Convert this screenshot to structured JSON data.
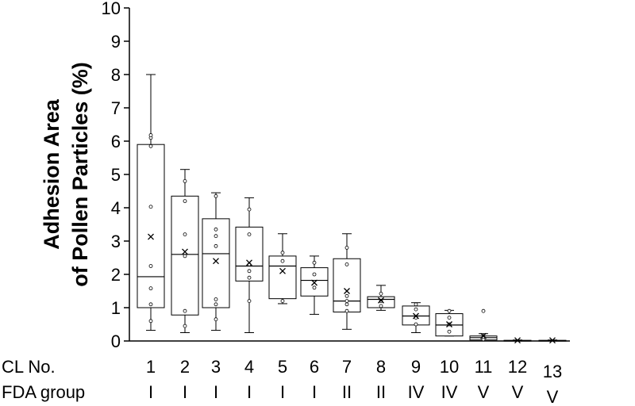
{
  "chart_data": {
    "type": "box",
    "ylabel_lines": [
      "Adhesion Area",
      "of Pollen Particles (%)"
    ],
    "ylim": [
      0,
      10
    ],
    "yticks": [
      "0",
      "1",
      "2",
      "3",
      "4",
      "5",
      "6",
      "7",
      "8",
      "9",
      "10"
    ],
    "row_labels": {
      "cl": "CL No.",
      "fda": "FDA group"
    },
    "categories": [
      {
        "cl": "1",
        "fda": "I",
        "min": 0.32,
        "q1": 1.0,
        "median": 1.93,
        "q3": 5.9,
        "max": 8.0,
        "mean": 3.13,
        "points": [
          0.6,
          1.1,
          1.58,
          2.25,
          4.03,
          5.85,
          6.1,
          6.18
        ]
      },
      {
        "cl": "2",
        "fda": "I",
        "min": 0.25,
        "q1": 0.78,
        "median": 2.6,
        "q3": 4.35,
        "max": 5.15,
        "mean": 2.68,
        "points": [
          0.45,
          0.9,
          2.55,
          3.2,
          4.2,
          4.8
        ]
      },
      {
        "cl": "3",
        "fda": "I",
        "min": 0.32,
        "q1": 1.0,
        "median": 2.62,
        "q3": 3.67,
        "max": 4.45,
        "mean": 2.4,
        "points": [
          0.65,
          1.1,
          1.25,
          2.85,
          3.15,
          3.35,
          4.35
        ]
      },
      {
        "cl": "4",
        "fda": "I",
        "min": 0.25,
        "q1": 1.8,
        "median": 2.25,
        "q3": 3.42,
        "max": 4.3,
        "mean": 2.35,
        "points": [
          1.2,
          1.9,
          2.1,
          2.3,
          3.2,
          3.95
        ]
      },
      {
        "cl": "5",
        "fda": "I",
        "min": 1.12,
        "q1": 1.27,
        "median": 2.25,
        "q3": 2.55,
        "max": 3.22,
        "mean": 2.1,
        "points": [
          1.2,
          2.4,
          2.65
        ]
      },
      {
        "cl": "6",
        "fda": "I",
        "min": 0.8,
        "q1": 1.35,
        "median": 1.82,
        "q3": 2.2,
        "max": 2.55,
        "mean": 1.75,
        "points": [
          1.6,
          2.0,
          2.35
        ]
      },
      {
        "cl": "7",
        "fda": "II",
        "min": 0.35,
        "q1": 0.87,
        "median": 1.2,
        "q3": 2.47,
        "max": 3.22,
        "mean": 1.5,
        "points": [
          0.9,
          1.1,
          1.2,
          1.35,
          2.3,
          2.8
        ]
      },
      {
        "cl": "8",
        "fda": "II",
        "min": 0.92,
        "q1": 1.0,
        "median": 1.25,
        "q3": 1.33,
        "max": 1.67,
        "mean": 1.22,
        "points": [
          1.05,
          1.2,
          1.42
        ]
      },
      {
        "cl": "9",
        "fda": "IV",
        "min": 0.25,
        "q1": 0.48,
        "median": 0.75,
        "q3": 1.05,
        "max": 1.15,
        "mean": 0.75,
        "points": [
          0.5,
          0.7,
          0.95,
          1.1
        ]
      },
      {
        "cl": "10",
        "fda": "IV",
        "min": 0.15,
        "q1": 0.15,
        "median": 0.48,
        "q3": 0.82,
        "max": 0.92,
        "mean": 0.5,
        "points": [
          0.28,
          0.5,
          0.7,
          0.9
        ]
      },
      {
        "cl": "11",
        "fda": "V",
        "min": 0.0,
        "q1": 0.03,
        "median": 0.1,
        "q3": 0.15,
        "max": 0.22,
        "mean": 0.15,
        "points": [
          0.05,
          0.12,
          0.9
        ]
      },
      {
        "cl": "12",
        "fda": "V",
        "min": 0.0,
        "q1": 0.0,
        "median": 0.01,
        "q3": 0.02,
        "max": 0.03,
        "mean": 0.02,
        "points": []
      },
      {
        "cl": "13",
        "fda": "V",
        "min": 0.0,
        "q1": 0.0,
        "median": 0.01,
        "q3": 0.02,
        "max": 0.03,
        "mean": 0.02,
        "points": []
      }
    ]
  }
}
